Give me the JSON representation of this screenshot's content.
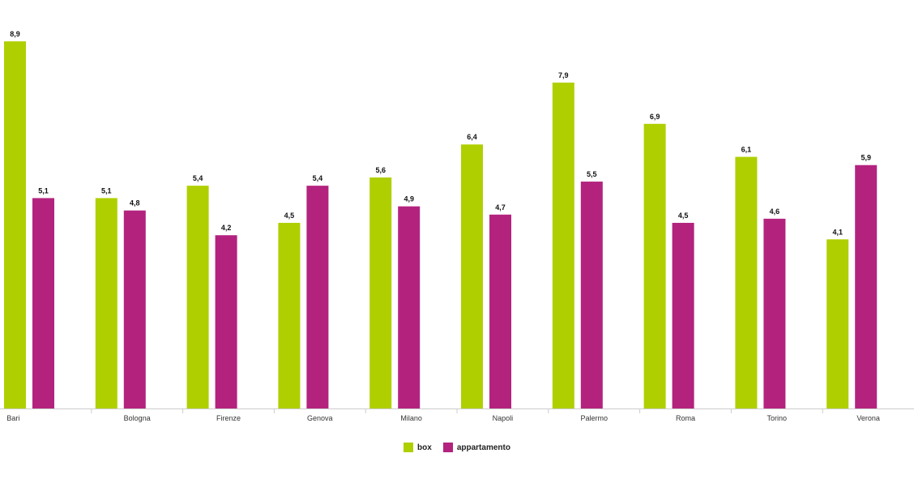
{
  "chart_data": {
    "type": "bar",
    "categories": [
      "Bari",
      "Bologna",
      "Firenze",
      "Genova",
      "Milano",
      "Napoli",
      "Palermo",
      "Roma",
      "Torino",
      "Verona"
    ],
    "series": [
      {
        "name": "box",
        "color": "#b0cf00",
        "values": [
          8.9,
          5.1,
          5.4,
          4.5,
          5.6,
          6.4,
          7.9,
          6.9,
          6.1,
          4.1
        ],
        "labels": [
          "8,9",
          "5,1",
          "5,4",
          "4,5",
          "5,6",
          "6,4",
          "7,9",
          "6,9",
          "6,1",
          "4,1"
        ]
      },
      {
        "name": "appartamento",
        "color": "#b3237e",
        "values": [
          5.1,
          4.8,
          4.2,
          5.4,
          4.9,
          4.7,
          5.5,
          4.5,
          4.6,
          5.9
        ],
        "labels": [
          "5,1",
          "4,8",
          "4,2",
          "5,4",
          "4,9",
          "4,7",
          "5,5",
          "4,5",
          "4,6",
          "5,9"
        ]
      }
    ],
    "title": "",
    "xlabel": "",
    "ylabel": "",
    "ylim": [
      0,
      8.9
    ],
    "grid": false,
    "legend_position": "bottom-center"
  }
}
